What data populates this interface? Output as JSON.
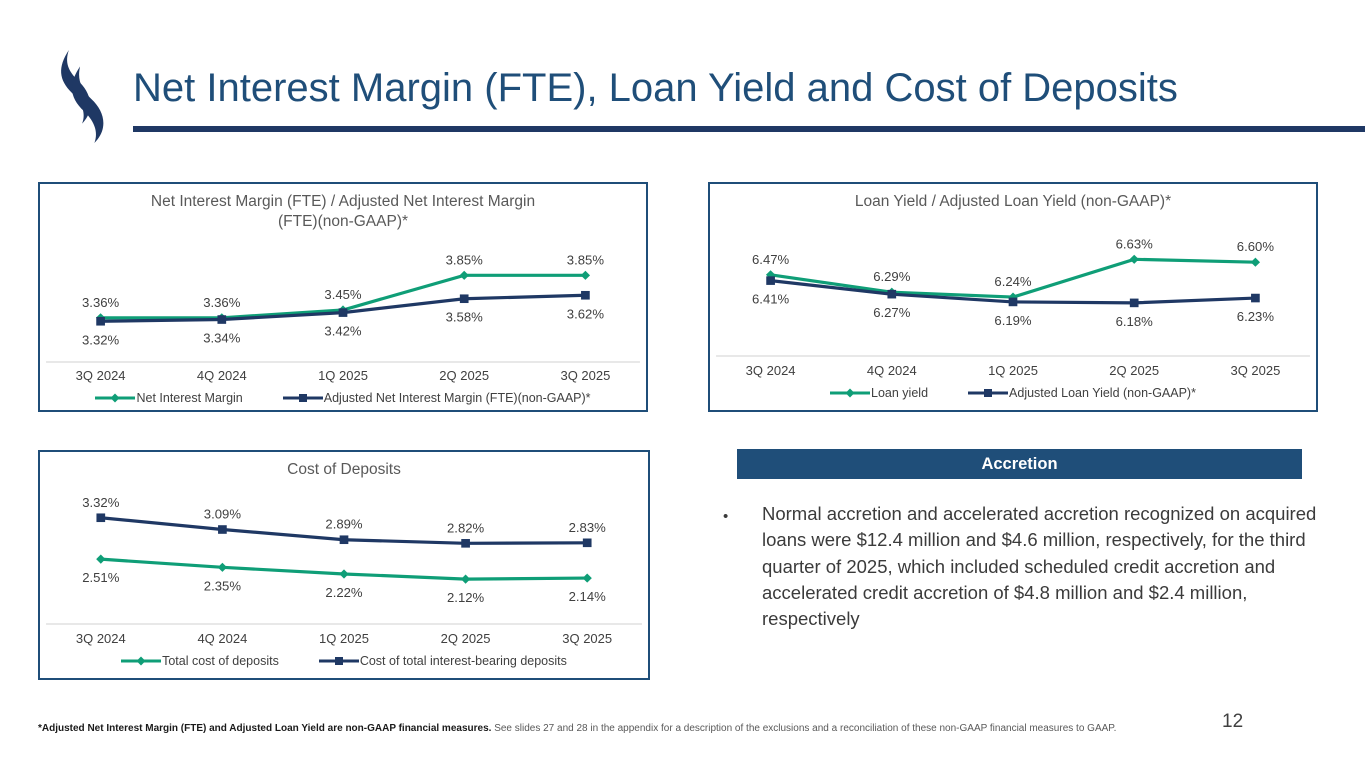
{
  "header": {
    "title": "Net Interest Margin (FTE), Loan Yield and Cost of Deposits"
  },
  "page": {
    "number": "12"
  },
  "colors": {
    "green": "#0F9E77",
    "navy": "#1F3864",
    "chart_border": "#1F4E79",
    "title_blue": "#1F4E79",
    "accretion_bg": "#1F4E79",
    "axis_line": "#D9D9D9",
    "label_gray": "#404040",
    "chart_title_gray": "#595959"
  },
  "chart_data": [
    {
      "type": "line",
      "title": "Net Interest Margin (FTE) / Adjusted Net Interest Margin (FTE)(non-GAAP)*",
      "categories": [
        "3Q 2024",
        "4Q 2024",
        "1Q 2025",
        "2Q 2025",
        "3Q 2025"
      ],
      "ylim": [
        3.15,
        4.05
      ],
      "legend_position": "bottom",
      "grid": false,
      "series": [
        {
          "name": "Net Interest Margin",
          "values": [
            3.36,
            3.36,
            3.45,
            3.85,
            3.85
          ],
          "labels": [
            "3.36%",
            "3.36%",
            "3.45%",
            "3.85%",
            "3.85%"
          ],
          "color_key": "green",
          "marker": "diamond",
          "label_pos": "above"
        },
        {
          "name": "Adjusted Net Interest Margin (FTE)(non-GAAP)*",
          "values": [
            3.32,
            3.34,
            3.42,
            3.58,
            3.62
          ],
          "labels": [
            "3.32%",
            "3.34%",
            "3.42%",
            "3.58%",
            "3.62%"
          ],
          "color_key": "navy",
          "marker": "square",
          "label_pos": "below"
        }
      ]
    },
    {
      "type": "line",
      "title": "Loan Yield / Adjusted Loan Yield (non-GAAP)*",
      "categories": [
        "3Q 2024",
        "4Q 2024",
        "1Q 2025",
        "2Q 2025",
        "3Q 2025"
      ],
      "ylim": [
        5.9,
        6.85
      ],
      "legend_position": "bottom",
      "grid": false,
      "series": [
        {
          "name": "Loan yield",
          "values": [
            6.47,
            6.29,
            6.24,
            6.63,
            6.6
          ],
          "labels": [
            "6.47%",
            "6.29%",
            "6.24%",
            "6.63%",
            "6.60%"
          ],
          "color_key": "green",
          "marker": "diamond",
          "label_pos": "above"
        },
        {
          "name": "Adjusted Loan Yield (non-GAAP)*",
          "values": [
            6.41,
            6.27,
            6.19,
            6.18,
            6.23
          ],
          "labels": [
            "6.41%",
            "6.27%",
            "6.19%",
            "6.18%",
            "6.23%"
          ],
          "color_key": "navy",
          "marker": "square",
          "label_pos": "below"
        }
      ]
    },
    {
      "type": "line",
      "title": "Cost of Deposits",
      "categories": [
        "3Q 2024",
        "4Q 2024",
        "1Q 2025",
        "2Q 2025",
        "3Q 2025"
      ],
      "ylim": [
        1.75,
        3.55
      ],
      "legend_position": "bottom",
      "grid": false,
      "series": [
        {
          "name": "Total cost of deposits",
          "values": [
            2.51,
            2.35,
            2.22,
            2.12,
            2.14
          ],
          "labels": [
            "2.51%",
            "2.35%",
            "2.22%",
            "2.12%",
            "2.14%"
          ],
          "color_key": "green",
          "marker": "diamond",
          "label_pos": "below"
        },
        {
          "name": "Cost of total interest-bearing deposits",
          "values": [
            3.32,
            3.09,
            2.89,
            2.82,
            2.83
          ],
          "labels": [
            "3.32%",
            "3.09%",
            "2.89%",
            "2.82%",
            "2.83%"
          ],
          "color_key": "navy",
          "marker": "square",
          "label_pos": "above"
        }
      ]
    }
  ],
  "accretion": {
    "header": "Accretion",
    "bullet_char": "•",
    "bullet": "Normal accretion and accelerated accretion recognized on acquired loans were $12.4 million and $4.6 million, respectively, for the third quarter of 2025, which included scheduled credit accretion and accelerated credit accretion of $4.8 million and $2.4 million, respectively"
  },
  "footnote": {
    "bold": "*Adjusted Net Interest Margin (FTE) and Adjusted Loan Yield are non-GAAP financial measures.",
    "rest": " See slides 27 and 28 in the appendix for a description of the exclusions and a reconciliation of these non-GAAP financial measures to GAAP."
  }
}
